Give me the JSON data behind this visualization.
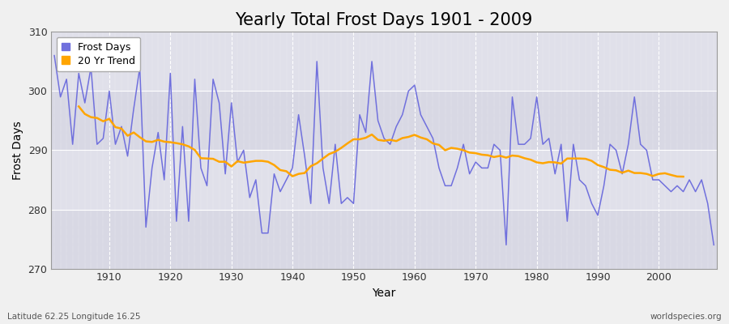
{
  "title": "Yearly Total Frost Days 1901 - 2009",
  "xlabel": "Year",
  "ylabel": "Frost Days",
  "footnote_left": "Latitude 62.25 Longitude 16.25",
  "footnote_right": "worldspecies.org",
  "years": [
    1901,
    1902,
    1903,
    1904,
    1905,
    1906,
    1907,
    1908,
    1909,
    1910,
    1911,
    1912,
    1913,
    1914,
    1915,
    1916,
    1917,
    1918,
    1919,
    1920,
    1921,
    1922,
    1923,
    1924,
    1925,
    1926,
    1927,
    1928,
    1929,
    1930,
    1931,
    1932,
    1933,
    1934,
    1935,
    1936,
    1937,
    1938,
    1939,
    1940,
    1941,
    1942,
    1943,
    1944,
    1945,
    1946,
    1947,
    1948,
    1949,
    1950,
    1951,
    1952,
    1953,
    1954,
    1955,
    1956,
    1957,
    1958,
    1959,
    1960,
    1961,
    1962,
    1963,
    1964,
    1965,
    1966,
    1967,
    1968,
    1969,
    1970,
    1971,
    1972,
    1973,
    1974,
    1975,
    1976,
    1977,
    1978,
    1979,
    1980,
    1981,
    1982,
    1983,
    1984,
    1985,
    1986,
    1987,
    1988,
    1989,
    1990,
    1991,
    1992,
    1993,
    1994,
    1995,
    1996,
    1997,
    1998,
    1999,
    2000,
    2001,
    2002,
    2003,
    2004,
    2005,
    2006,
    2007,
    2008,
    2009
  ],
  "frost_days": [
    306,
    299,
    302,
    291,
    303,
    298,
    304,
    291,
    292,
    300,
    291,
    294,
    289,
    297,
    304,
    277,
    287,
    293,
    285,
    303,
    278,
    294,
    278,
    302,
    287,
    284,
    302,
    298,
    286,
    298,
    288,
    290,
    282,
    285,
    276,
    276,
    286,
    283,
    285,
    287,
    296,
    289,
    281,
    305,
    287,
    281,
    291,
    281,
    282,
    281,
    296,
    293,
    305,
    295,
    292,
    291,
    294,
    296,
    300,
    301,
    296,
    294,
    292,
    287,
    284,
    284,
    287,
    291,
    286,
    288,
    287,
    287,
    291,
    290,
    274,
    299,
    291,
    291,
    292,
    299,
    291,
    292,
    286,
    291,
    278,
    291,
    285,
    284,
    281,
    279,
    284,
    291,
    290,
    286,
    291,
    299,
    291,
    290,
    285,
    285,
    284,
    283,
    284,
    283,
    285,
    283,
    285,
    281,
    274
  ],
  "line_color": "#7070dd",
  "trend_color": "#FFA500",
  "bg_color": "#f0f0f0",
  "plot_bg": "#e0e0e8",
  "ylim": [
    270,
    310
  ],
  "yticks": [
    270,
    280,
    290,
    300,
    310
  ],
  "xlim_start": 1901,
  "xlim_end": 2009,
  "xtick_major": 10,
  "title_fontsize": 15,
  "axis_label_fontsize": 10,
  "tick_fontsize": 9,
  "legend_fontsize": 9
}
